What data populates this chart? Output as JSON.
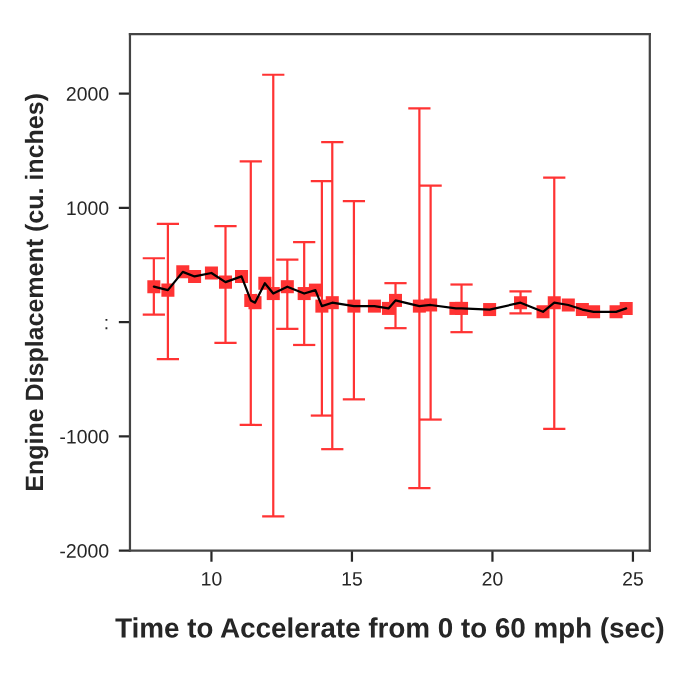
{
  "chart_data": {
    "type": "line",
    "xlabel": "Time to Accelerate from 0 to 60 mph (sec)",
    "ylabel": "Engine Displacement (cu. inches)",
    "x": [
      7.95,
      8.45,
      8.98,
      9.4,
      10.0,
      10.5,
      11.07,
      11.4,
      11.55,
      11.9,
      12.2,
      12.7,
      13.3,
      13.7,
      13.93,
      14.3,
      15.07,
      15.8,
      16.3,
      16.55,
      17.4,
      17.8,
      18.7,
      18.9,
      19.9,
      21.0,
      21.8,
      22.2,
      22.7,
      23.2,
      23.6,
      24.4,
      24.76
    ],
    "series": [
      {
        "color": "#000000",
        "marker": "none",
        "values": [
          310,
          280,
          440,
          400,
          430,
          350,
          400,
          190,
          170,
          340,
          250,
          310,
          250,
          280,
          140,
          170,
          140,
          140,
          120,
          190,
          140,
          150,
          120,
          120,
          110,
          170,
          90,
          170,
          150,
          110,
          90,
          90,
          120
        ]
      },
      {
        "type": "scatter",
        "color": "#ff3333",
        "marker": "square",
        "values": [
          310,
          280,
          440,
          400,
          430,
          350,
          400,
          190,
          170,
          340,
          250,
          310,
          250,
          280,
          140,
          170,
          140,
          140,
          120,
          190,
          140,
          150,
          120,
          120,
          110,
          170,
          90,
          170,
          150,
          110,
          90,
          90,
          120
        ],
        "errors": [
          [
            65,
            559
          ],
          [
            -324,
            859
          ],
          null,
          null,
          null,
          [
            -182,
            841
          ],
          null,
          [
            -900,
            1406
          ],
          null,
          null,
          [
            -1700,
            2165
          ],
          [
            -59,
            547
          ],
          [
            -200,
            700
          ],
          null,
          [
            -818,
            1235
          ],
          [
            -1112,
            1576
          ],
          [
            -676,
            1059
          ],
          null,
          null,
          [
            -53,
            341
          ],
          [
            -1453,
            1871
          ],
          [
            -853,
            1194
          ],
          null,
          [
            -88,
            329
          ],
          null,
          [
            76,
            270
          ],
          null,
          [
            -935,
            1265
          ],
          null,
          null,
          null,
          null,
          null
        ]
      }
    ],
    "xlim": [
      7.1,
      25.6
    ],
    "xticks": [
      10,
      15,
      20,
      25
    ],
    "ylim": [
      -2000,
      2520
    ],
    "yticks": [
      -2000,
      -1000,
      {
        "value": 0,
        "label": ":"
      },
      1000,
      2000
    ],
    "grid": false,
    "legend": false
  }
}
